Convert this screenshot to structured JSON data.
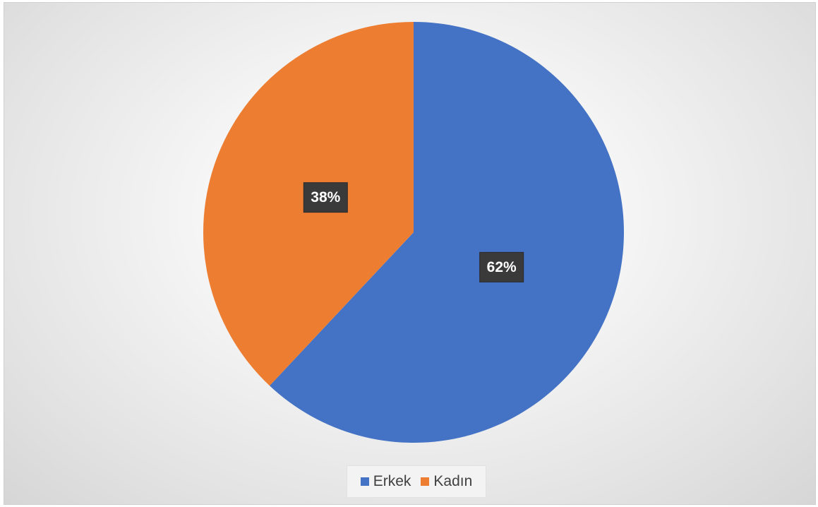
{
  "chart_data": {
    "type": "pie",
    "categories": [
      "Erkek",
      "Kadın"
    ],
    "values": [
      62,
      38
    ],
    "labels": [
      "62%",
      "38%"
    ],
    "colors": [
      "#4472c4",
      "#ed7d31"
    ],
    "start_angle_deg": 0,
    "direction": "clockwise",
    "legend_position": "bottom"
  }
}
